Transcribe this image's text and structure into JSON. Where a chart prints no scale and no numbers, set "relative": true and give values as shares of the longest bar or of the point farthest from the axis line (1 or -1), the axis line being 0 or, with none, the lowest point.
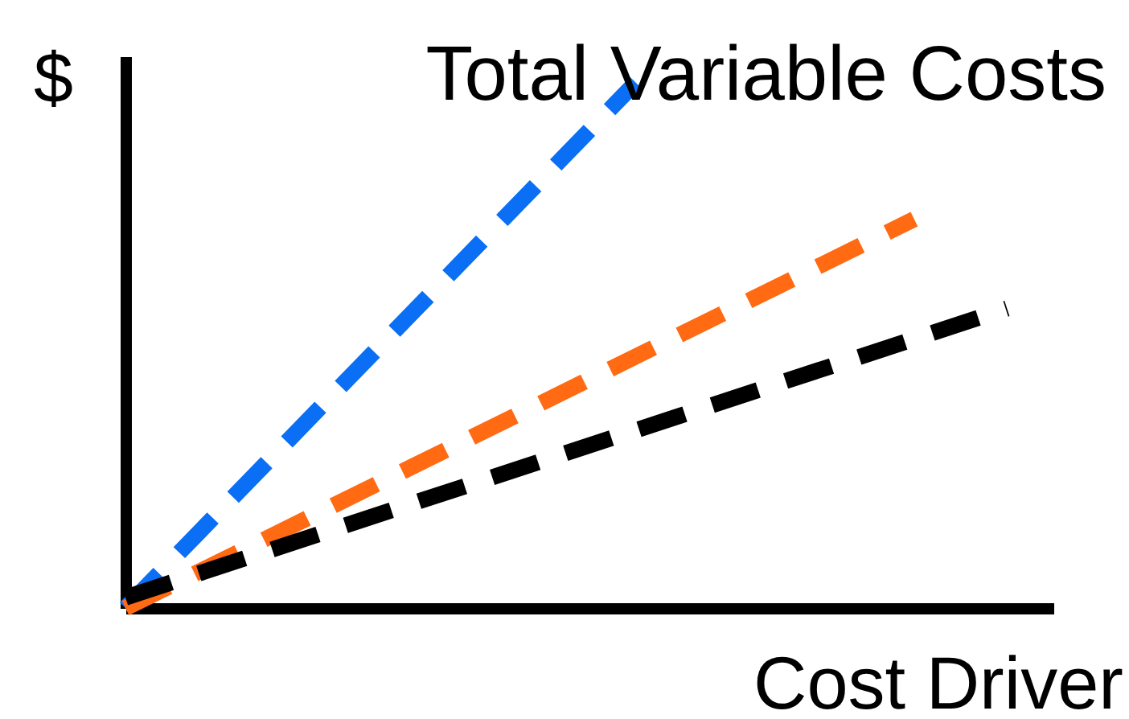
{
  "chart_data": {
    "type": "line",
    "title": "Total Variable Costs",
    "xlabel": "Cost Driver",
    "ylabel": "$",
    "relative": true,
    "categories": [
      null,
      null,
      null,
      null,
      null,
      null,
      null,
      null,
      null,
      null,
      null,
      null,
      null,
      null,
      null,
      null,
      null,
      null,
      null,
      null,
      null
    ],
    "series": [
      {
        "color": "#0a6ff5",
        "values": [
          0,
          null,
          null,
          null,
          null,
          null,
          null,
          null,
          null,
          null,
          null,
          1,
          null,
          null,
          null,
          null,
          null,
          null,
          null,
          null,
          null
        ]
      },
      {
        "color": "#ff6a13",
        "values": [
          0,
          null,
          null,
          null,
          null,
          null,
          null,
          null,
          null,
          null,
          null,
          null,
          null,
          null,
          null,
          null,
          null,
          0.74,
          null,
          null,
          null
        ]
      },
      {
        "color": "#000000",
        "values": [
          0.02,
          null,
          null,
          null,
          null,
          null,
          null,
          null,
          null,
          null,
          null,
          null,
          null,
          null,
          null,
          null,
          null,
          null,
          null,
          0.57,
          null
        ]
      }
    ],
    "line_style": "dashed",
    "marker": "none",
    "grid": false,
    "legend": false
  }
}
